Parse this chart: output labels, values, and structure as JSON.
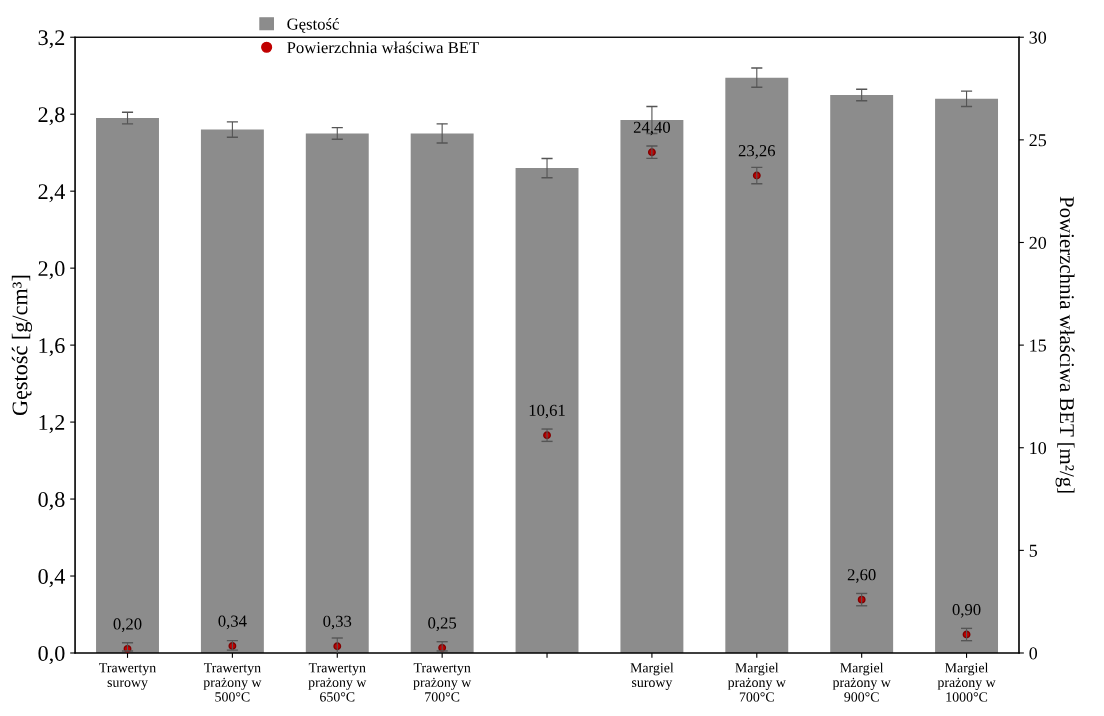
{
  "chart_data": {
    "type": "bar",
    "categories": [
      "Trawertyn\nsurowy",
      "Trawertyn\nprażony w\n500°C",
      "Trawertyn\nprażony w\n650°C",
      "Trawertyn\nprażony w\n700°C",
      null,
      "Margiel\nsurowy",
      "Margiel\nprażony w\n700°C",
      "Margiel\nprażony w\n900°C",
      "Margiel\nprażony w\n1000°C"
    ],
    "series": [
      {
        "name": "Gęstość",
        "color": "#8c8c8c",
        "values": [
          2.78,
          2.72,
          2.7,
          2.7,
          2.52,
          2.77,
          2.99,
          2.9,
          2.88
        ],
        "errors": [
          0.03,
          0.04,
          0.03,
          0.05,
          0.05,
          0.07,
          0.05,
          0.03,
          0.04
        ]
      },
      {
        "name": "Powierzchnia właściwa BET",
        "type": "scatter",
        "axis": "y2",
        "color": "#c00000",
        "values": [
          0.2,
          0.34,
          0.33,
          0.25,
          10.61,
          24.4,
          23.26,
          2.6,
          0.9
        ],
        "errors": [
          [
            0.1,
            0.5
          ],
          [
            0.14,
            0.6
          ],
          0.4,
          [
            0.1,
            0.55
          ],
          0.3,
          0.3,
          0.4,
          0.3,
          0.3
        ],
        "value_labels": [
          "0,20",
          "0,34",
          "0,33",
          "0,25",
          "10,61",
          "24,40",
          "23,26",
          "2,60",
          "0,90"
        ]
      }
    ],
    "ylabel": "Gęstość [g/cm³]",
    "y2label": "Powierzchnia właściwa BET [m²/g]",
    "ylim": [
      0,
      3.2
    ],
    "yticks": [
      {
        "value": 0,
        "label": "0,0"
      },
      {
        "value": 0.4,
        "label": "0,4"
      },
      {
        "value": 0.8,
        "label": "0,8"
      },
      {
        "value": 1.2,
        "label": "1,2"
      },
      {
        "value": 1.6,
        "label": "1,6"
      },
      {
        "value": 2.0,
        "label": "2,0"
      },
      {
        "value": 2.4,
        "label": "2,4"
      },
      {
        "value": 2.8,
        "label": "2,8"
      },
      {
        "value": 3.2,
        "label": "3,2"
      }
    ],
    "y2lim": [
      0,
      30
    ],
    "y2ticks": [
      0,
      5,
      10,
      15,
      20,
      25,
      30
    ],
    "marker": "circle",
    "grid": false,
    "legend": "top"
  }
}
